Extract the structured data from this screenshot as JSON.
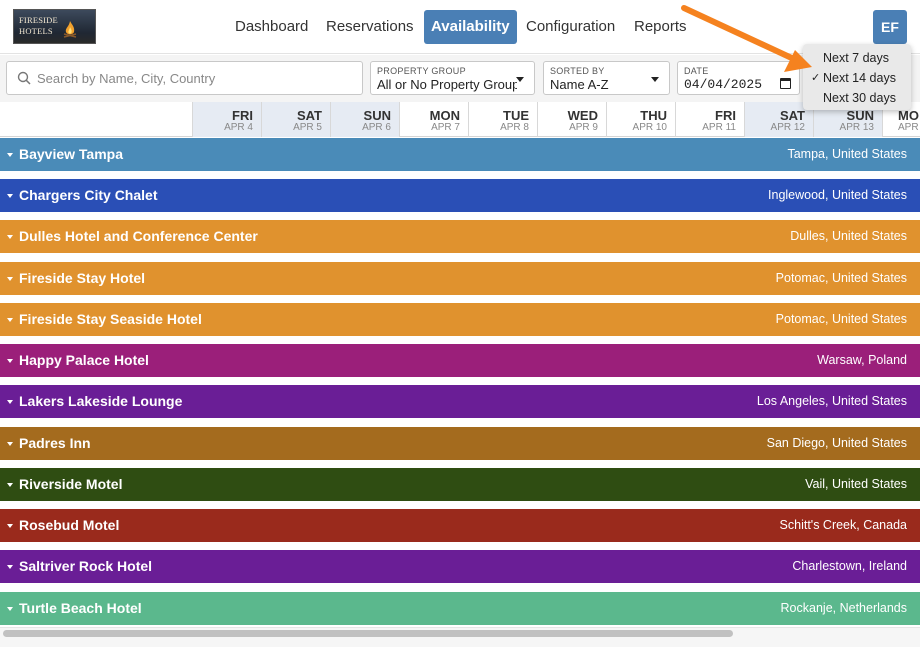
{
  "header": {
    "logo_text": "FIRESIDE HOTELS",
    "nav": [
      {
        "label": "Dashboard",
        "active": false
      },
      {
        "label": "Reservations",
        "active": false
      },
      {
        "label": "Availability",
        "active": true
      },
      {
        "label": "Configuration",
        "active": false
      },
      {
        "label": "Reports",
        "active": false
      }
    ],
    "avatar": "EF",
    "accent_color": "#4a7fb5"
  },
  "toolbar": {
    "search_placeholder": "Search by Name, City, Country",
    "search_icon": "search-icon",
    "property_group": {
      "label": "PROPERTY GROUP",
      "value": "All or No Property Group"
    },
    "sorted_by": {
      "label": "SORTED BY",
      "value": "Name A-Z"
    },
    "date": {
      "label": "DATE",
      "value": "04/04/2025"
    }
  },
  "range_menu": {
    "items": [
      {
        "label": "Next 7 days",
        "selected": false
      },
      {
        "label": "Next 14 days",
        "selected": true
      },
      {
        "label": "Next 30 days",
        "selected": false
      }
    ],
    "check_mark": "✓"
  },
  "dates": [
    {
      "dow": "FRI",
      "md": "APR 4"
    },
    {
      "dow": "SAT",
      "md": "APR 5"
    },
    {
      "dow": "SUN",
      "md": "APR 6"
    },
    {
      "dow": "MON",
      "md": "APR 7"
    },
    {
      "dow": "TUE",
      "md": "APR 8"
    },
    {
      "dow": "WED",
      "md": "APR 9"
    },
    {
      "dow": "THU",
      "md": "APR 10"
    },
    {
      "dow": "FRI",
      "md": "APR 11"
    },
    {
      "dow": "SAT",
      "md": "APR 12"
    },
    {
      "dow": "SUN",
      "md": "APR 13"
    },
    {
      "dow": "MO",
      "md": "APR"
    }
  ],
  "hotels": [
    {
      "name": "Bayview Tampa",
      "location": "Tampa, United States",
      "color": "#4a8bb8"
    },
    {
      "name": "Chargers City Chalet",
      "location": "Inglewood, United States",
      "color": "#2a4fb6"
    },
    {
      "name": "Dulles Hotel and Conference Center",
      "location": "Dulles, United States",
      "color": "#e0922e"
    },
    {
      "name": "Fireside Stay Hotel",
      "location": "Potomac, United States",
      "color": "#e0922e"
    },
    {
      "name": "Fireside Stay Seaside Hotel",
      "location": "Potomac, United States",
      "color": "#e0922e"
    },
    {
      "name": "Happy Palace Hotel",
      "location": "Warsaw, Poland",
      "color": "#9b1f7a"
    },
    {
      "name": "Lakers Lakeside Lounge",
      "location": "Los Angeles, United States",
      "color": "#6a1e96"
    },
    {
      "name": "Padres Inn",
      "location": "San Diego, United States",
      "color": "#a46b1e"
    },
    {
      "name": "Riverside Motel",
      "location": "Vail, United States",
      "color": "#2f4d12"
    },
    {
      "name": "Rosebud Motel",
      "location": "Schitt's Creek, Canada",
      "color": "#9a2a1c"
    },
    {
      "name": "Saltriver Rock Hotel",
      "location": "Charlestown, Ireland",
      "color": "#6a1e96"
    },
    {
      "name": "Turtle Beach Hotel",
      "location": "Rockanje, Netherlands",
      "color": "#5bb88d"
    }
  ],
  "annotation": {
    "arrow_color": "#f5821f"
  }
}
